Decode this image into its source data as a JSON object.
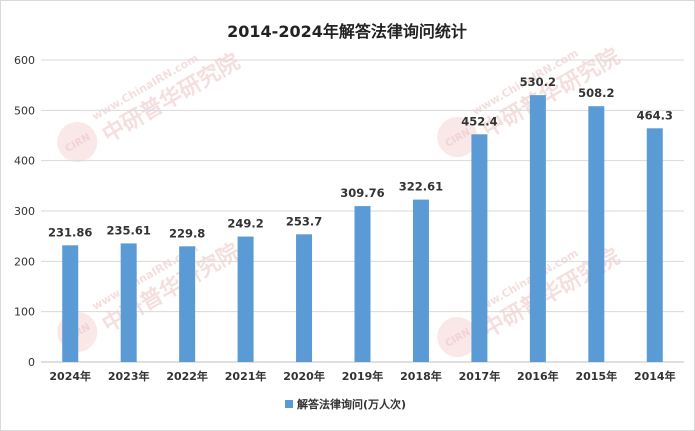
{
  "chart_data": {
    "type": "bar",
    "title": "2014-2024年解答法律询问统计",
    "categories": [
      "2024年",
      "2023年",
      "2022年",
      "2021年",
      "2020年",
      "2019年",
      "2018年",
      "2017年",
      "2016年",
      "2015年",
      "2014年"
    ],
    "series": [
      {
        "name": "解答法律询问(万人次)",
        "values": [
          231.86,
          235.61,
          229.8,
          249.2,
          253.7,
          309.76,
          322.61,
          452.4,
          530.2,
          508.2,
          464.3
        ],
        "value_labels": [
          "231.86",
          "235.61",
          "229.8",
          "249.2",
          "253.7",
          "309.76",
          "322.61",
          "452.4",
          "530.2",
          "508.2",
          "464.3"
        ],
        "color": "#5b9bd5"
      }
    ],
    "xlabel": "",
    "ylabel": "",
    "ylim": [
      0,
      600
    ],
    "yticks": [
      0,
      100,
      200,
      300,
      400,
      500,
      600
    ],
    "grid": true,
    "legend": "bottom"
  },
  "watermark": {
    "text": "www.ChinaIRN.com",
    "brand": "中研普华研究院",
    "logo": "CIRN"
  }
}
